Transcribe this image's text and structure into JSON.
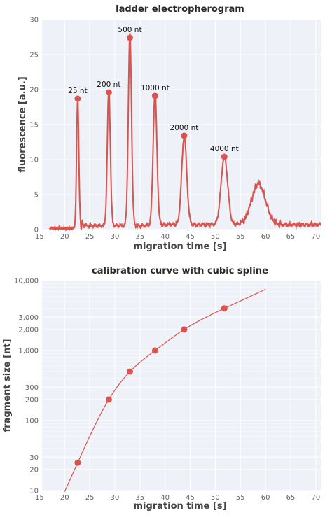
{
  "chart_data": [
    {
      "type": "line",
      "title": "ladder electropherogram",
      "xlabel": "migration time [s]",
      "ylabel": "fluorescence [a.u.]",
      "xlim": [
        15.5,
        71
      ],
      "ylim": [
        0,
        30
      ],
      "x_ticks": [
        15,
        20,
        25,
        30,
        35,
        40,
        45,
        50,
        55,
        60,
        65,
        70
      ],
      "y_ticks": [
        0,
        5,
        10,
        15,
        20,
        25,
        30
      ],
      "grid": true,
      "color": "#d9534f",
      "trace": {
        "baseline": 0.2,
        "peaks": [
          {
            "x": 22.6,
            "height": 18.5,
            "width": 0.22
          },
          {
            "x": 28.8,
            "height": 19.4,
            "width": 0.3
          },
          {
            "x": 33.0,
            "height": 27.3,
            "width": 0.32
          },
          {
            "x": 38.0,
            "height": 18.9,
            "width": 0.38
          },
          {
            "x": 43.8,
            "height": 12.6,
            "width": 0.5
          },
          {
            "x": 51.8,
            "height": 9.8,
            "width": 0.65
          },
          {
            "x": 58.6,
            "height": 5.8,
            "width": 1.4
          }
        ]
      },
      "markers": [
        {
          "x": 22.6,
          "y": 18.7,
          "label": "25 nt"
        },
        {
          "x": 28.8,
          "y": 19.6,
          "label": "200 nt"
        },
        {
          "x": 33.0,
          "y": 27.4,
          "label": "500 nt"
        },
        {
          "x": 38.0,
          "y": 19.1,
          "label": "1000 nt"
        },
        {
          "x": 43.8,
          "y": 13.4,
          "label": "2000 nt"
        },
        {
          "x": 51.8,
          "y": 10.4,
          "label": "4000 nt"
        }
      ]
    },
    {
      "type": "scatter",
      "title": "calibration curve with cubic spline",
      "xlabel": "migration time [s]",
      "ylabel": "fragment size [nt]",
      "xlim": [
        15.5,
        71
      ],
      "ylim": [
        10,
        10000
      ],
      "y_scale": "log",
      "x_ticks": [
        15,
        20,
        25,
        30,
        35,
        40,
        45,
        50,
        55,
        60,
        65,
        70
      ],
      "y_ticks": [
        10,
        20,
        30,
        100,
        200,
        300,
        1000,
        2000,
        3000,
        10000
      ],
      "y_tick_labels": [
        "10",
        "20",
        "30",
        "100",
        "200",
        "300",
        "1,000",
        "2,000",
        "3,000",
        "10,000"
      ],
      "grid": true,
      "color": "#d9534f",
      "points": [
        {
          "x": 22.6,
          "y": 25
        },
        {
          "x": 28.8,
          "y": 200
        },
        {
          "x": 33.0,
          "y": 500
        },
        {
          "x": 38.0,
          "y": 1000
        },
        {
          "x": 43.8,
          "y": 2000
        },
        {
          "x": 51.8,
          "y": 4000
        }
      ],
      "spline": {
        "x_range": [
          20,
          60
        ]
      }
    }
  ]
}
